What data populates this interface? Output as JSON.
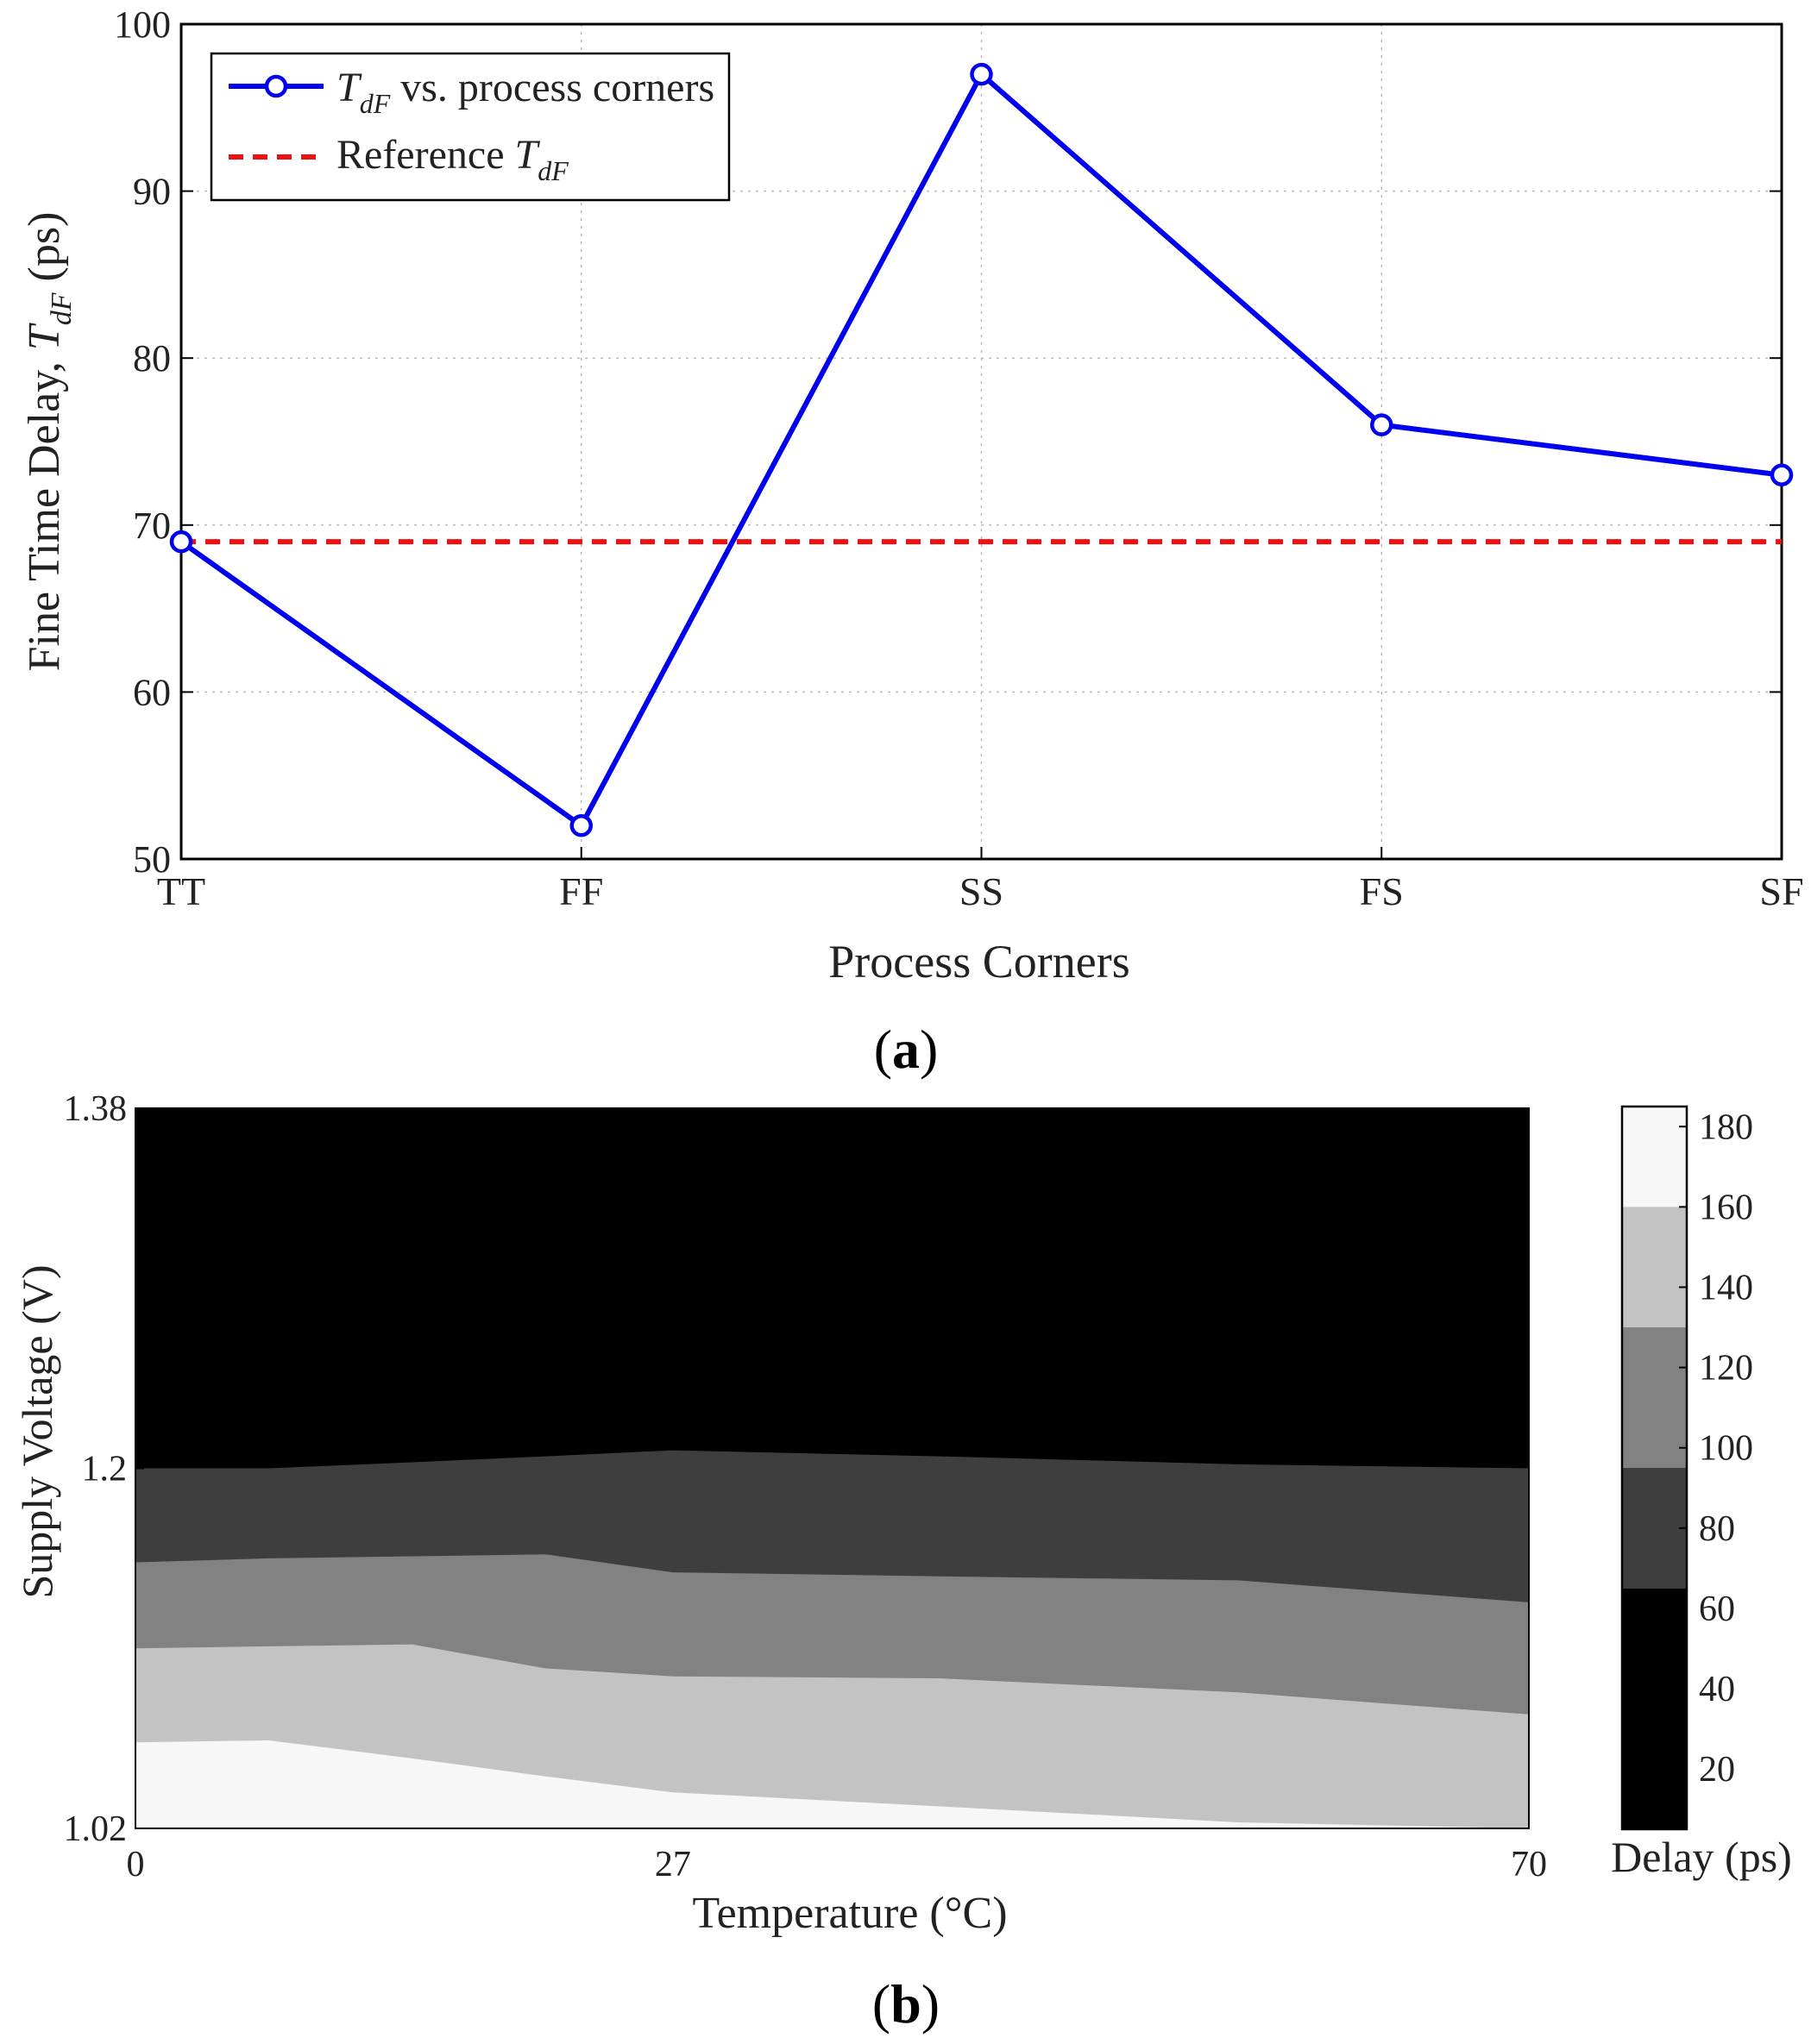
{
  "chart_data": [
    {
      "type": "line",
      "panel_label": "a",
      "xlabel": "Process Corners",
      "ylabel_prefix": "Fine Time Delay, ",
      "ylabel_symbol": "T",
      "ylabel_subscript": "dF",
      "ylabel_suffix": " (ps)",
      "categories": [
        "TT",
        "FF",
        "SS",
        "FS",
        "SF"
      ],
      "ylim": [
        50,
        100
      ],
      "yticks": [
        "50",
        "60",
        "70",
        "80",
        "90",
        "100"
      ],
      "grid": true,
      "legend_position": "top-left",
      "series": [
        {
          "name": "T_dF vs. process corners",
          "legend_symbol": "T",
          "legend_subscript": "dF",
          "legend_text": " vs. process corners",
          "values": [
            69,
            52,
            97,
            76,
            73
          ],
          "color": "#0000ee",
          "style": "solid",
          "marker": "circle"
        },
        {
          "name": "Reference T_dF",
          "legend_text": "Reference ",
          "legend_symbol": "T",
          "legend_subscript": "dF",
          "values": [
            69,
            69,
            69,
            69,
            69
          ],
          "color": "#ee1111",
          "style": "dashed",
          "marker": "none"
        }
      ]
    },
    {
      "type": "heatmap",
      "panel_label": "b",
      "xlabel": "Temperature (°C)",
      "ylabel": "Supply Voltage (V)",
      "xlim": [
        0,
        70
      ],
      "xticks": [
        "0",
        "27",
        "70"
      ],
      "ylim": [
        1.02,
        1.38
      ],
      "yticks": [
        "1.02",
        "1.2",
        "1.38"
      ],
      "colorbar_label": "Delay (ps)",
      "colorbar_range": [
        5,
        185
      ],
      "colorbar_ticks": [
        "20",
        "40",
        "60",
        "80",
        "100",
        "120",
        "140",
        "160",
        "180"
      ],
      "bands": [
        {
          "range": "160-185",
          "color": "#f7f7f7"
        },
        {
          "range": "130-160",
          "color": "#c3c3c3"
        },
        {
          "range": "95-130",
          "color": "#828282"
        },
        {
          "range": "65-95",
          "color": "#3e3e3e"
        },
        {
          "range": "5-65",
          "color": "#000000"
        }
      ],
      "contour_temps": [
        0,
        6.7,
        13.9,
        20.6,
        27,
        40.4,
        55.4,
        70
      ],
      "contours": [
        {
          "between": "white / light gray",
          "voltages": [
            1.063,
            1.064,
            1.055,
            1.046,
            1.038,
            1.031,
            1.023,
            1.02
          ]
        },
        {
          "between": "light gray / mid gray",
          "voltages": [
            1.11,
            1.111,
            1.112,
            1.1,
            1.096,
            1.095,
            1.088,
            1.077
          ]
        },
        {
          "between": "mid gray / dark gray",
          "voltages": [
            1.153,
            1.155,
            1.156,
            1.157,
            1.148,
            1.146,
            1.144,
            1.133
          ]
        },
        {
          "between": "dark gray / black",
          "voltages": [
            1.2,
            1.2,
            1.203,
            1.206,
            1.209,
            1.206,
            1.202,
            1.2
          ]
        }
      ]
    }
  ]
}
